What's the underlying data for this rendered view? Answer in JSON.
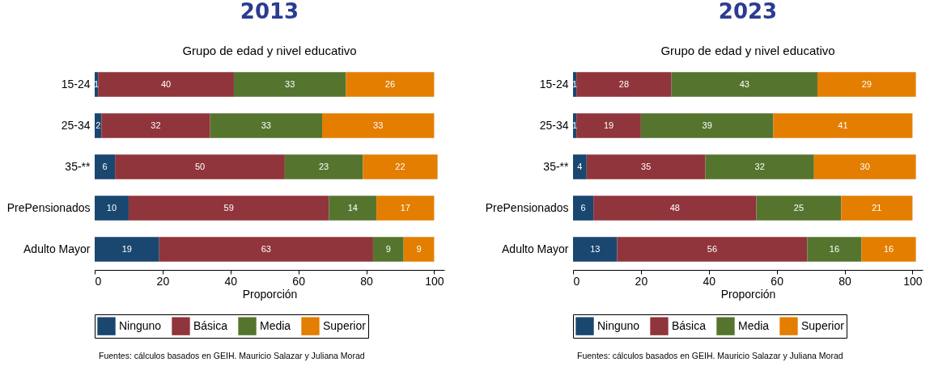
{
  "chart_data": [
    {
      "type": "bar",
      "orientation": "horizontal",
      "stacked": true,
      "title": "2013",
      "subtitle": "Grupo de edad y nivel educativo",
      "xlabel": "Proporción",
      "categories": [
        "15-24",
        "25-34",
        "35-**",
        "PrePensionados",
        "Adulto Mayor"
      ],
      "series": [
        {
          "name": "Ninguno",
          "color": "#1a476f",
          "values": [
            1,
            2,
            6,
            10,
            19
          ]
        },
        {
          "name": "Básica",
          "color": "#90353b",
          "values": [
            40,
            32,
            50,
            59,
            63
          ]
        },
        {
          "name": "Media",
          "color": "#55752f",
          "values": [
            33,
            33,
            23,
            14,
            9
          ]
        },
        {
          "name": "Superior",
          "color": "#e37e00",
          "values": [
            26,
            33,
            22,
            17,
            9
          ]
        }
      ],
      "xlim": [
        0,
        103
      ],
      "xticks": [
        0,
        20,
        40,
        60,
        80,
        100
      ],
      "grid": false,
      "legend": "bottom",
      "data_labels": true,
      "annotations": [
        "Fuentes: cálculos basados en GEIH. Mauricio Salazar y Juliana Morad"
      ]
    },
    {
      "type": "bar",
      "orientation": "horizontal",
      "stacked": true,
      "title": "2023",
      "subtitle": "Grupo de edad y nivel educativo",
      "xlabel": "Proporción",
      "categories": [
        "15-24",
        "25-34",
        "35-**",
        "PrePensionados",
        "Adulto Mayor"
      ],
      "series": [
        {
          "name": "Ninguno",
          "color": "#1a476f",
          "values": [
            1,
            1,
            4,
            6,
            13
          ]
        },
        {
          "name": "Básica",
          "color": "#90353b",
          "values": [
            28,
            19,
            35,
            48,
            56
          ]
        },
        {
          "name": "Media",
          "color": "#55752f",
          "values": [
            43,
            39,
            32,
            25,
            16
          ]
        },
        {
          "name": "Superior",
          "color": "#e37e00",
          "values": [
            29,
            41,
            30,
            21,
            16
          ]
        }
      ],
      "xlim": [
        0,
        103
      ],
      "xticks": [
        0,
        20,
        40,
        60,
        80,
        100
      ],
      "grid": false,
      "legend": "bottom",
      "data_labels": true,
      "annotations": [
        "Fuentes: cálculos basados en GEIH. Mauricio Salazar y Juliana Morad"
      ]
    }
  ]
}
